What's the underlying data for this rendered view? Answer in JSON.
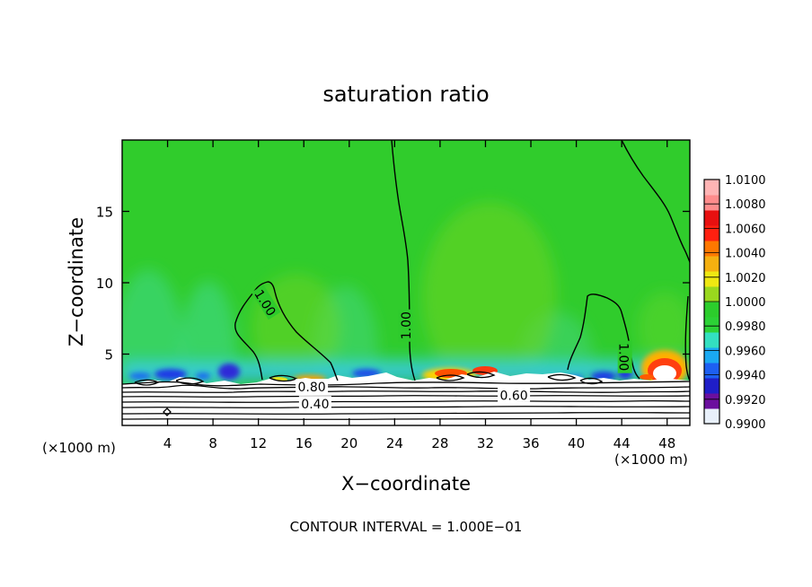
{
  "chart_data": {
    "type": "heatmap",
    "title": "saturation ratio",
    "xlabel": "X−coordinate",
    "ylabel": "Z−coordinate",
    "x_unit_left": "(×1000 m)",
    "x_unit_right": "(×1000 m)",
    "footer": "CONTOUR INTERVAL = 1.000E−01",
    "xlim": [
      0,
      50
    ],
    "ylim": [
      0,
      20
    ],
    "xticks": [
      4,
      8,
      12,
      16,
      20,
      24,
      28,
      32,
      36,
      40,
      44,
      48
    ],
    "xtick_labels": [
      "4",
      "8",
      "12",
      "16",
      "20",
      "24",
      "28",
      "32",
      "36",
      "40",
      "44",
      "48"
    ],
    "yticks": [
      5,
      10,
      15
    ],
    "ytick_labels": [
      "5",
      "10",
      "15"
    ],
    "colorbar": {
      "min": 0.99,
      "max": 1.01,
      "labels": [
        "1.0100",
        "1.0080",
        "1.0060",
        "1.0040",
        "1.0020",
        "1.0000",
        "0.9980",
        "0.9960",
        "0.9940",
        "0.9920",
        "0.9900"
      ],
      "colors": [
        "#e8f0fa",
        "#6b0f9e",
        "#1f1ec8",
        "#1d5ff2",
        "#1aa9f2",
        "#33e0c0",
        "#2cd236",
        "#2ccd2c",
        "#9ad81e",
        "#efe812",
        "#f5b010",
        "#ff7800",
        "#ff2010",
        "#e81010",
        "#ff8c8c",
        "#ffb4b4"
      ]
    },
    "contour_labels": [
      {
        "text": "1.00",
        "x": 12.6,
        "z": 8.6,
        "rotate": 58
      },
      {
        "text": "1.00",
        "x": 25.0,
        "z": 7.0,
        "rotate": -90
      },
      {
        "text": "1.00",
        "x": 44.2,
        "z": 4.8,
        "rotate": 90
      },
      {
        "text": "0.80",
        "x": 16.7,
        "z": 2.7,
        "rotate": 0
      },
      {
        "text": "0.60",
        "x": 34.5,
        "z": 2.1,
        "rotate": 0
      },
      {
        "text": "0.40",
        "x": 17.0,
        "z": 1.5,
        "rotate": 0
      }
    ]
  }
}
